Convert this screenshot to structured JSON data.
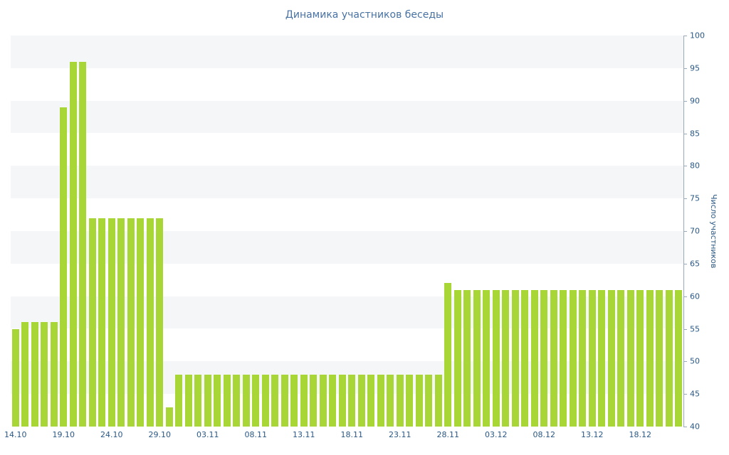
{
  "chart": {
    "title": "Динамика участников беседы",
    "y_axis_label": "Число участников",
    "colors": {
      "bar": "#a7d636",
      "stripe": "#f5f6f7",
      "axis_line": "#9aa9b8",
      "tick_text": "#2a5885",
      "title_text": "#4872a3"
    }
  },
  "chart_data": {
    "type": "bar",
    "title": "Динамика участников беседы",
    "xlabel": "",
    "ylabel": "Число участников",
    "ylim": [
      40,
      100
    ],
    "grid": "horizontal-stripes",
    "legend_position": "none",
    "y_ticks": [
      40,
      45,
      50,
      55,
      60,
      65,
      70,
      75,
      80,
      85,
      90,
      95,
      100
    ],
    "x_tick_labels": [
      "14.10",
      "19.10",
      "24.10",
      "29.10",
      "03.11",
      "08.11",
      "13.11",
      "18.11",
      "23.11",
      "28.11",
      "03.12",
      "08.12",
      "13.12",
      "18.12"
    ],
    "categories": [
      "14.10",
      "15.10",
      "16.10",
      "17.10",
      "18.10",
      "19.10",
      "20.10",
      "21.10",
      "22.10",
      "23.10",
      "24.10",
      "25.10",
      "26.10",
      "27.10",
      "28.10",
      "29.10",
      "30.10",
      "31.10",
      "01.11",
      "02.11",
      "03.11",
      "04.11",
      "05.11",
      "06.11",
      "07.11",
      "08.11",
      "09.11",
      "10.11",
      "11.11",
      "12.11",
      "13.11",
      "14.11",
      "15.11",
      "16.11",
      "17.11",
      "18.11",
      "19.11",
      "20.11",
      "21.11",
      "22.11",
      "23.11",
      "24.11",
      "25.11",
      "26.11",
      "27.11",
      "28.11",
      "29.11",
      "30.11",
      "01.12",
      "02.12",
      "03.12",
      "04.12",
      "05.12",
      "06.12",
      "07.12",
      "08.12",
      "09.12",
      "10.12",
      "11.12",
      "12.12",
      "13.12",
      "14.12",
      "15.12",
      "16.12",
      "17.12",
      "18.12",
      "19.12",
      "20.12",
      "21.12",
      "22.12"
    ],
    "values": [
      55,
      56,
      56,
      56,
      56,
      89,
      96,
      96,
      72,
      72,
      72,
      72,
      72,
      72,
      72,
      72,
      43,
      48,
      48,
      48,
      48,
      48,
      48,
      48,
      48,
      48,
      48,
      48,
      48,
      48,
      48,
      48,
      48,
      48,
      48,
      48,
      48,
      48,
      48,
      48,
      48,
      48,
      48,
      48,
      48,
      62,
      61,
      61,
      61,
      61,
      61,
      61,
      61,
      61,
      61,
      61,
      61,
      61,
      61,
      61,
      61,
      61,
      61,
      61,
      61,
      61,
      61,
      61,
      61,
      61
    ]
  }
}
